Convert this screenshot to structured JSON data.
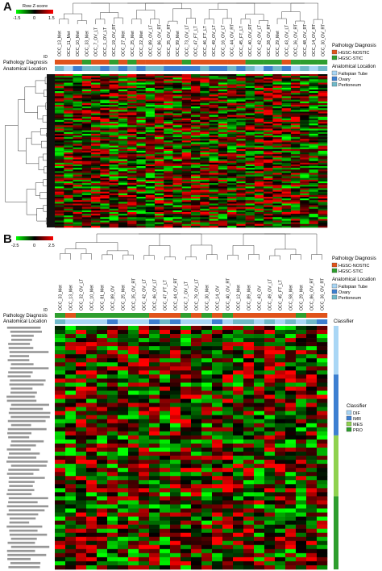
{
  "panel_a": {
    "letter": "A",
    "colorkey_title": "Row Z-score",
    "colorkey_ticks": [
      "-1.5",
      "0",
      "1.5"
    ],
    "track_labels": [
      "Pathology Diagnosis",
      "Anatomical Location"
    ],
    "id_label": "ID",
    "sample_ids": [
      "OCC_13_Met",
      "OCC_11_Met",
      "OCC_10_Met",
      "OCC_33_Met",
      "OCC_7_OV_LT",
      "OCC_1_OV_LT",
      "OCC_19_OV_RT",
      "OCC_27_Met",
      "OCC_25_Met",
      "OCC_22_Met",
      "OCC_89_OV_LT",
      "OCC_86_OV_RT",
      "OCC_35_OV_RT",
      "OCC_99_Met",
      "OCC_73_OV_LT",
      "OCC_47_FT_LT",
      "OCC_46_FT_LT",
      "OCC_49_OV_LT",
      "OCC_16_OV_LT",
      "OCC_44_OV_RT",
      "OCC_45_FT_LT",
      "OCC_40_OV_RT",
      "OCC_42_OV_LT",
      "OCC_28_OV_RT",
      "OCC_29_Met",
      "OCC_43_OV_LT",
      "OCC_36_OV_RT",
      "OCC_48_OV_RT",
      "OCC_14_OV_RT",
      "OCC_30_OV_RT"
    ],
    "legend": {
      "pathology_title": "Pathology Diagnosis",
      "pathology_items": [
        {
          "label": "HGSC-NOSTIC",
          "color": "#e0531b"
        },
        {
          "label": "HGSC-STIC",
          "color": "#2e9e2e"
        }
      ],
      "location_title": "Anatomical Location",
      "location_items": [
        {
          "label": "Fallopian Tube",
          "color": "#a9d6f5"
        },
        {
          "label": "Ovary",
          "color": "#3d7fd1"
        },
        {
          "label": "Peritoneum",
          "color": "#6fb9c9"
        }
      ]
    }
  },
  "panel_b": {
    "letter": "B",
    "colorkey_ticks": [
      "-2.5",
      "0",
      "2.5"
    ],
    "track_labels": [
      "Pathology Diagnosis",
      "Anatomical Location"
    ],
    "id_label": "ID",
    "classifier_label": "Classifier",
    "sample_ids": [
      "OCC_33_Met",
      "OCC_13_Met",
      "OCC_32_OV_LT",
      "OCC_10_Met",
      "OCC_81_Met",
      "OCC_89_OV",
      "OCC_25_Met",
      "OCC_35_OV_RT",
      "OCC_42_OV_LT",
      "OCC_46_OV_LT",
      "OCC_47_FT_LT",
      "OCC_44_OV_RT",
      "OCC_7_OV_LT",
      "OCC_79_OV_LT",
      "OCC_30_Met",
      "OCC_14_OV",
      "OCC_40_OV_RT",
      "OCC_12_Met",
      "OCC_89_Met",
      "OCC_43_OV",
      "OCC_49_OV_LT",
      "OCC_45_FT_LT",
      "OCC_58_Met",
      "OCC_29_Met",
      "OCC_86_OV_RT",
      "OCC_36_OV_RT"
    ],
    "legend": {
      "pathology_title": "Pathology Diagnosis",
      "pathology_items": [
        {
          "label": "HGSC-NOSTIC",
          "color": "#e0531b"
        },
        {
          "label": "HGSC-STIC",
          "color": "#2e9e2e"
        }
      ],
      "location_title": "Anatomical Location",
      "location_items": [
        {
          "label": "Fallopian Tube",
          "color": "#a9d6f5"
        },
        {
          "label": "Ovary",
          "color": "#3d7fd1"
        },
        {
          "label": "Peritoneum",
          "color": "#6fb9c9"
        }
      ],
      "classifier_title": "Classifier",
      "classifier_items": [
        {
          "label": "DIF",
          "color": "#a9d6f5"
        },
        {
          "label": "IMR",
          "color": "#3d7fd1"
        },
        {
          "label": "MES",
          "color": "#8fd14f"
        },
        {
          "label": "PRO",
          "color": "#2e9e2e"
        }
      ]
    }
  },
  "chart_data": [
    {
      "type": "heatmap",
      "title": "",
      "colorscale": {
        "low": "#00ff00",
        "mid": "#000000",
        "high": "#ff0000",
        "range": [
          -1.5,
          1.5
        ]
      },
      "columns": 30,
      "rows": 90
    },
    {
      "type": "heatmap",
      "title": "",
      "colorscale": {
        "low": "#00ff00",
        "mid": "#000000",
        "high": "#ff0000",
        "range": [
          -2.5,
          2.5
        ]
      },
      "columns": 26,
      "rows": 60,
      "classifier_blocks": [
        {
          "label": "DIF",
          "rows": 12
        },
        {
          "label": "IMR",
          "rows": 15
        },
        {
          "label": "MES",
          "rows": 15
        },
        {
          "label": "PRO",
          "rows": 18
        }
      ]
    }
  ]
}
